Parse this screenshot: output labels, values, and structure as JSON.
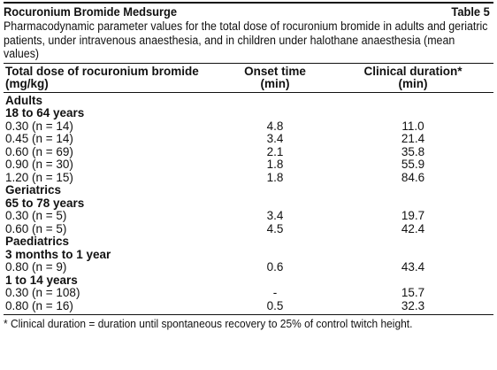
{
  "header": {
    "title": "Rocuronium Bromide Medsurge",
    "table_number": "Table 5"
  },
  "caption": "Pharmacodynamic parameter values for the total dose of rocuronium bromide in adults and geriatric patients, under intravenous anaesthesia, and in children under halothane anaesthesia (mean values)",
  "columns": {
    "dose": {
      "line1": "Total dose of rocuronium bromide",
      "line2": "(mg/kg)"
    },
    "onset": {
      "line1": "Onset time",
      "line2": "(min)"
    },
    "duration": {
      "line1": "Clinical duration*",
      "line2": "(min)"
    }
  },
  "rows": [
    {
      "type": "group",
      "label": "Adults"
    },
    {
      "type": "group",
      "label": "18 to 64 years"
    },
    {
      "type": "data",
      "dose": "0.30 (n = 14)",
      "onset": "4.8",
      "duration": "11.0"
    },
    {
      "type": "data",
      "dose": "0.45 (n = 14)",
      "onset": "3.4",
      "duration": "21.4"
    },
    {
      "type": "data",
      "dose": "0.60 (n = 69)",
      "onset": "2.1",
      "duration": "35.8"
    },
    {
      "type": "data",
      "dose": "0.90 (n = 30)",
      "onset": "1.8",
      "duration": "55.9"
    },
    {
      "type": "data",
      "dose": "1.20 (n = 15)",
      "onset": "1.8",
      "duration": "84.6"
    },
    {
      "type": "group",
      "label": "Geriatrics"
    },
    {
      "type": "group",
      "label": "65 to 78 years"
    },
    {
      "type": "data",
      "dose": "0.30 (n = 5)",
      "onset": "3.4",
      "duration": "19.7"
    },
    {
      "type": "data",
      "dose": "0.60 (n = 5)",
      "onset": "4.5",
      "duration": "42.4"
    },
    {
      "type": "group",
      "label": "Paediatrics"
    },
    {
      "type": "group",
      "label": "3 months to 1 year"
    },
    {
      "type": "data",
      "dose": "0.80 (n = 9)",
      "onset": "0.6",
      "duration": "43.4"
    },
    {
      "type": "group",
      "label": "1 to 14 years"
    },
    {
      "type": "data",
      "dose": "0.30 (n = 108)",
      "onset": "-",
      "duration": "15.7"
    },
    {
      "type": "data",
      "dose": "0.80 (n = 16)",
      "onset": "0.5",
      "duration": "32.3"
    }
  ],
  "footnote": "* Clinical duration = duration until spontaneous recovery to 25% of control twitch height."
}
